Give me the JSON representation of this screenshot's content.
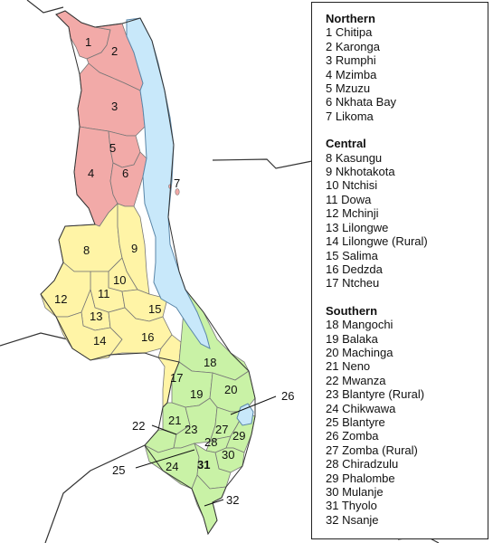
{
  "colors": {
    "northern": "#f2aaa8",
    "central": "#fff4a6",
    "southern": "#c9f2a6",
    "lake": "#c8e8fa",
    "border": "#777777",
    "country_outline": "#333333"
  },
  "legend": {
    "regions": [
      {
        "name": "Northern",
        "districts": [
          "1 Chitipa",
          "2 Karonga",
          "3 Rumphi",
          "4 Mzimba",
          "5 Mzuzu",
          "6 Nkhata Bay",
          "7 Likoma"
        ]
      },
      {
        "name": "Central",
        "districts": [
          "8 Kasungu",
          "9 Nkhotakota",
          "10 Ntchisi",
          "11 Dowa",
          "12 Mchinji",
          "13 Lilongwe",
          "14 Lilongwe (Rural)",
          "15 Salima",
          "16 Dedzda",
          "17 Ntcheu"
        ]
      },
      {
        "name": "Southern",
        "districts": [
          "18 Mangochi",
          "19 Balaka",
          "20 Machinga",
          "21 Neno",
          "22 Mwanza",
          "23 Blantyre (Rural)",
          "24 Chikwawa",
          "25 Blantyre",
          "26 Zomba",
          "27 Zomba (Rural)",
          "28 Chiradzulu",
          "29 Phalombe",
          "30 Mulanje",
          "31 Thyolo",
          "32 Nsanje"
        ]
      }
    ]
  },
  "map_labels": [
    "1",
    "2",
    "3",
    "4",
    "5",
    "6",
    "7",
    "8",
    "9",
    "10",
    "11",
    "12",
    "13",
    "14",
    "15",
    "16",
    "17",
    "18",
    "19",
    "20",
    "21",
    "22",
    "23",
    "24",
    "25",
    "26",
    "27",
    "28",
    "29",
    "30",
    "31",
    "32"
  ]
}
